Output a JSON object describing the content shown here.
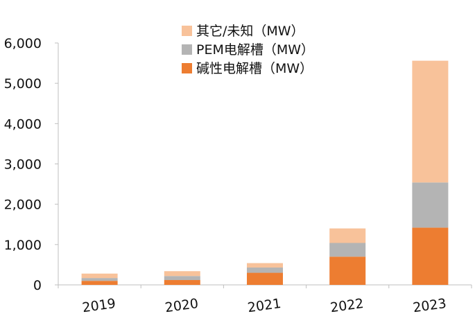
{
  "chart_data": {
    "type": "bar",
    "stacked": true,
    "categories": [
      "2019",
      "2020",
      "2021",
      "2022",
      "2023"
    ],
    "series": [
      {
        "name": "碱性电解槽（MW）",
        "color": "#ED7D31",
        "values": [
          100,
          120,
          300,
          700,
          1420
        ]
      },
      {
        "name": "PEM电解槽（MW）",
        "color": "#B4B4B4",
        "values": [
          70,
          100,
          130,
          340,
          1120
        ]
      },
      {
        "name": "其它/未知（MW）",
        "color": "#F8C29A",
        "values": [
          110,
          120,
          110,
          360,
          3020
        ]
      }
    ],
    "ylim": [
      0,
      6000
    ],
    "yticks": [
      0,
      1000,
      2000,
      3000,
      4000,
      5000,
      6000
    ],
    "ytick_labels": [
      "0",
      "1,000",
      "2,000",
      "3,000",
      "4,000",
      "5,000",
      "6,000"
    ],
    "grid": false,
    "legend_position": "top-center",
    "xlabel": "",
    "ylabel": "",
    "title": ""
  }
}
